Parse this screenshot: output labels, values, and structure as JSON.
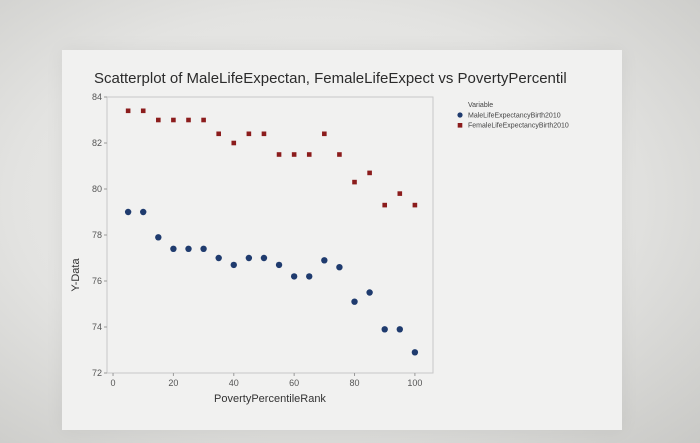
{
  "chart_data": {
    "type": "scatter",
    "title": "Scatterplot of MaleLifeExpectan, FemaleLifeExpect vs PovertyPercentil",
    "xlabel": "PovertyPercentileRank",
    "ylabel": "Y-Data",
    "xlim": [
      -2,
      106
    ],
    "ylim": [
      72,
      84
    ],
    "xticks": [
      0,
      20,
      40,
      60,
      80,
      100
    ],
    "yticks": [
      72,
      74,
      76,
      78,
      80,
      82,
      84
    ],
    "grid": false,
    "legend_title": "Variable",
    "legend_position": "top-right",
    "series": [
      {
        "name": "MaleLifeExpectancyBirth2010",
        "marker": "circle",
        "color": "#1f3b6e",
        "x": [
          5,
          10,
          15,
          20,
          25,
          30,
          35,
          40,
          45,
          50,
          55,
          60,
          65,
          70,
          75,
          80,
          85,
          90,
          95,
          100
        ],
        "y": [
          79,
          79,
          77.9,
          77.4,
          77.4,
          77.4,
          77,
          76.7,
          77,
          77,
          76.7,
          76.2,
          76.2,
          76.9,
          76.6,
          75.1,
          75.5,
          73.9,
          73.9,
          72.9
        ]
      },
      {
        "name": "FemaleLifeExpectancyBirth2010",
        "marker": "square",
        "color": "#8b1c1c",
        "x": [
          5,
          10,
          15,
          20,
          25,
          30,
          35,
          40,
          45,
          50,
          55,
          60,
          65,
          70,
          75,
          80,
          85,
          90,
          95,
          100
        ],
        "y": [
          83.4,
          83.4,
          83,
          83,
          83,
          83,
          82.4,
          82,
          82.4,
          82.4,
          81.5,
          81.5,
          81.5,
          82.4,
          81.5,
          80.3,
          80.7,
          79.3,
          79.8,
          79.3
        ]
      }
    ]
  }
}
